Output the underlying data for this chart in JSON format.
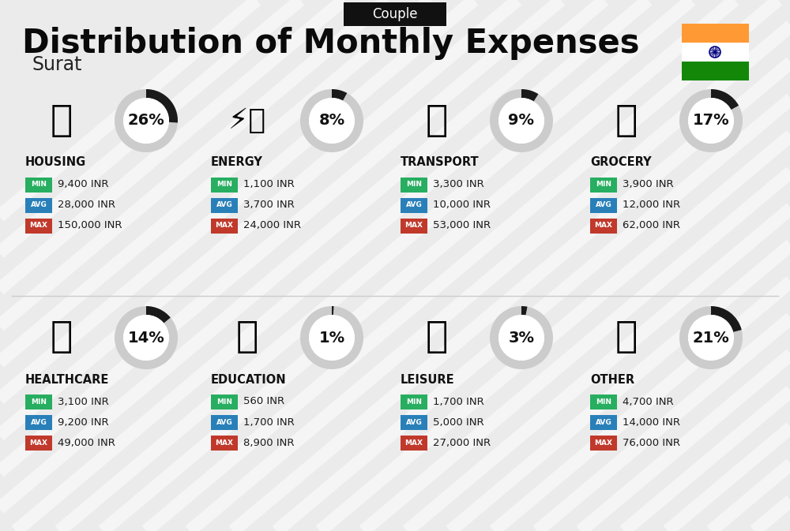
{
  "title": "Distribution of Monthly Expenses",
  "subtitle": "Surat",
  "header_label": "Couple",
  "bg_color": "#ebebeb",
  "categories": [
    {
      "name": "HOUSING",
      "percent": 26,
      "min_val": "9,400 INR",
      "avg_val": "28,000 INR",
      "max_val": "150,000 INR",
      "row": 0,
      "col": 0
    },
    {
      "name": "ENERGY",
      "percent": 8,
      "min_val": "1,100 INR",
      "avg_val": "3,700 INR",
      "max_val": "24,000 INR",
      "row": 0,
      "col": 1
    },
    {
      "name": "TRANSPORT",
      "percent": 9,
      "min_val": "3,300 INR",
      "avg_val": "10,000 INR",
      "max_val": "53,000 INR",
      "row": 0,
      "col": 2
    },
    {
      "name": "GROCERY",
      "percent": 17,
      "min_val": "3,900 INR",
      "avg_val": "12,000 INR",
      "max_val": "62,000 INR",
      "row": 0,
      "col": 3
    },
    {
      "name": "HEALTHCARE",
      "percent": 14,
      "min_val": "3,100 INR",
      "avg_val": "9,200 INR",
      "max_val": "49,000 INR",
      "row": 1,
      "col": 0
    },
    {
      "name": "EDUCATION",
      "percent": 1,
      "min_val": "560 INR",
      "avg_val": "1,700 INR",
      "max_val": "8,900 INR",
      "row": 1,
      "col": 1
    },
    {
      "name": "LEISURE",
      "percent": 3,
      "min_val": "1,700 INR",
      "avg_val": "5,000 INR",
      "max_val": "27,000 INR",
      "row": 1,
      "col": 2
    },
    {
      "name": "OTHER",
      "percent": 21,
      "min_val": "4,700 INR",
      "avg_val": "14,000 INR",
      "max_val": "76,000 INR",
      "row": 1,
      "col": 3
    }
  ],
  "color_min": "#27ae60",
  "color_avg": "#2980b9",
  "color_max": "#c0392b",
  "india_flag_orange": "#FF9933",
  "india_flag_white": "#FFFFFF",
  "india_flag_green": "#138808",
  "india_flag_navy": "#000080",
  "arc_filled": "#1a1a1a",
  "arc_empty": "#cccccc",
  "stripe_color": "#ffffff"
}
